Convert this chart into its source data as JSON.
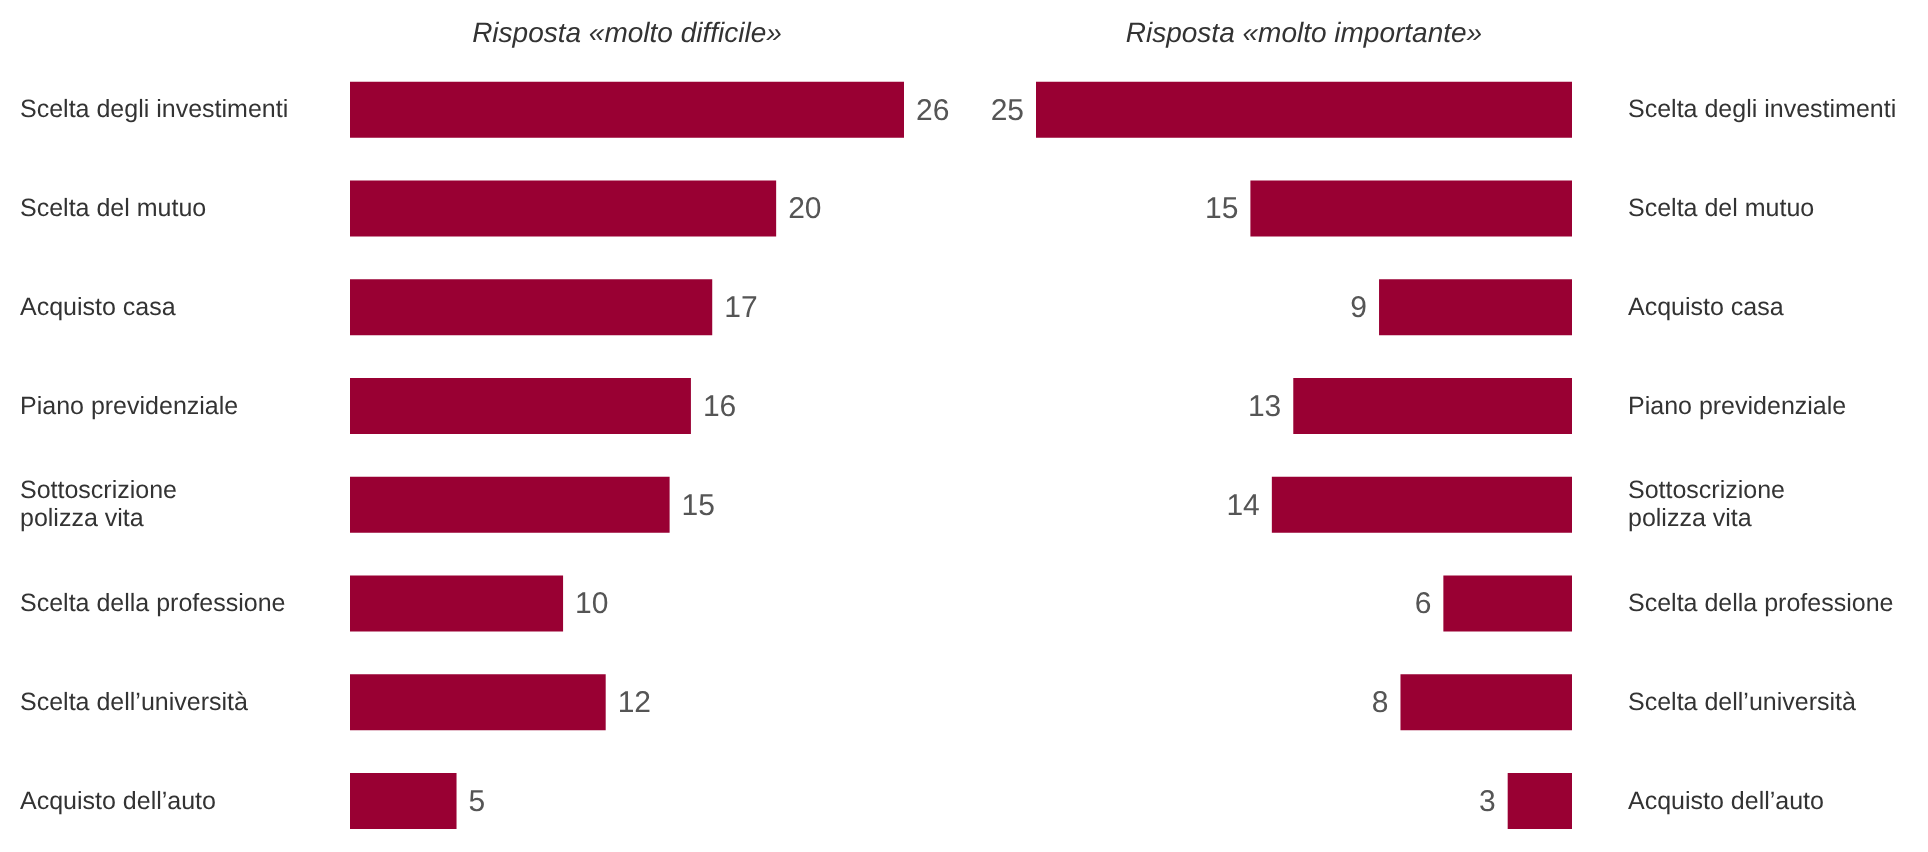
{
  "chart_data": [
    {
      "type": "bar",
      "orientation": "horizontal",
      "title": "Risposta «molto difficile»",
      "categories": [
        "Scelta degli investimenti",
        "Scelta del mutuo",
        "Acquisto casa",
        "Piano previdenziale",
        "Sottoscrizione\npolizza vita",
        "Scelta della professione",
        "Scelta dell’università",
        "Acquisto dell’auto"
      ],
      "values": [
        26,
        20,
        17,
        16,
        15,
        10,
        12,
        5
      ],
      "color": "#990033",
      "xlim": [
        0,
        26
      ],
      "data_labels": true,
      "tick_labels": "y"
    },
    {
      "type": "bar",
      "orientation": "horizontal",
      "title": "Risposta «molto importante»",
      "categories": [
        "Scelta degli investimenti",
        "Scelta del mutuo",
        "Acquisto casa",
        "Piano previdenziale",
        "Sottoscrizione\npolizza vita",
        "Scelta della professione",
        "Scelta dell’università",
        "Acquisto dell’auto"
      ],
      "values": [
        25,
        15,
        9,
        13,
        14,
        6,
        8,
        3
      ],
      "color": "#990033",
      "xlim": [
        25,
        0
      ],
      "data_labels": true,
      "tick_labels": "y"
    }
  ]
}
